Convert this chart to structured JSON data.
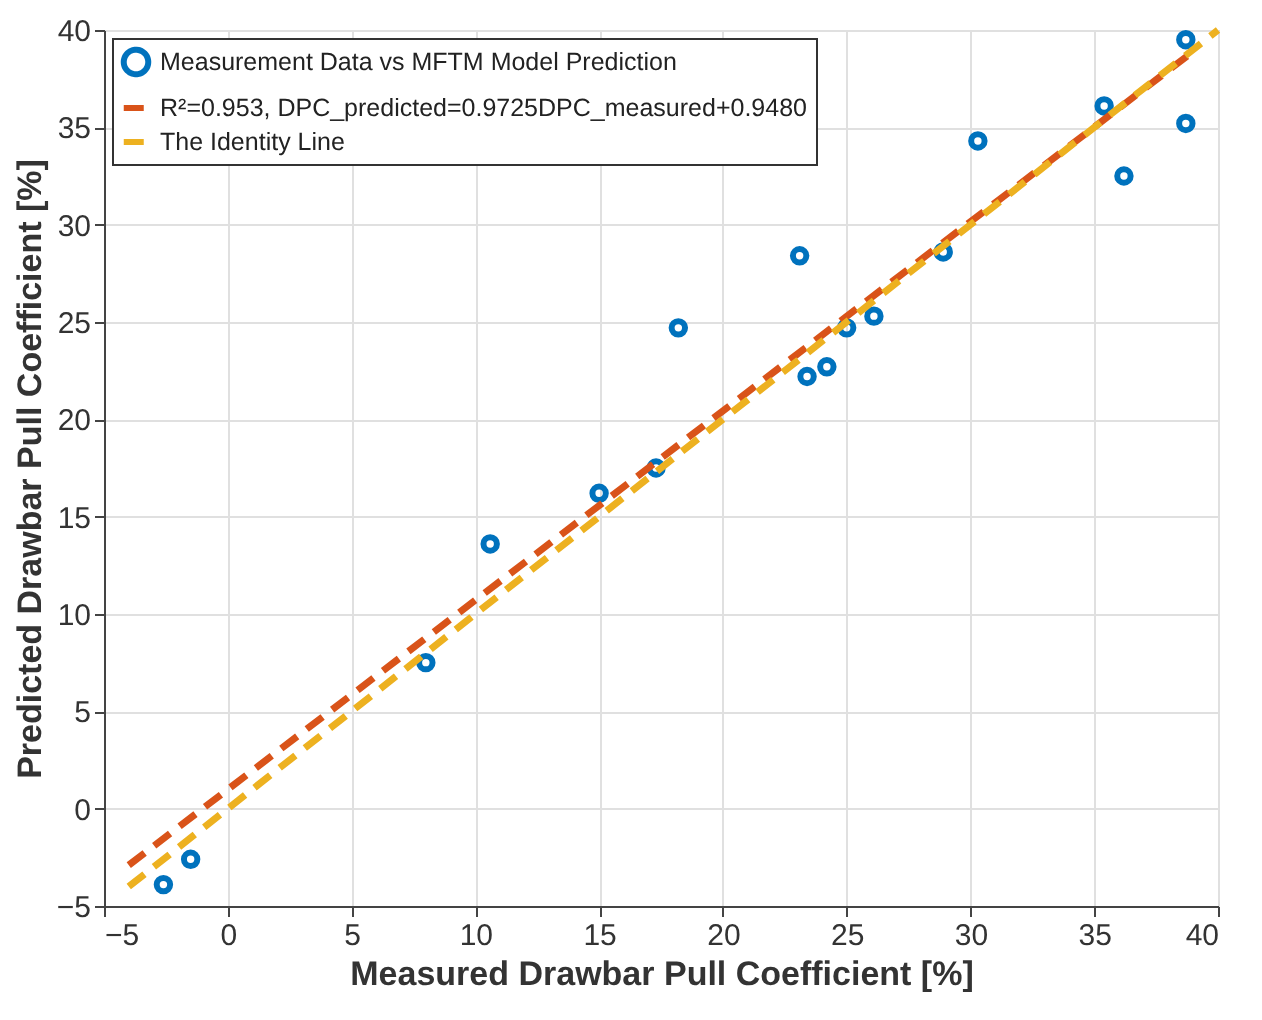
{
  "chart_data": {
    "type": "scatter",
    "xlabel": "Measured Drawbar Pull Coefficient [%]",
    "ylabel": "Predicted Drawbar Pull Coefficient [%]",
    "xlim": [
      -5,
      40
    ],
    "ylim": [
      -5,
      40
    ],
    "xticks": [
      -5,
      0,
      5,
      10,
      15,
      20,
      25,
      30,
      35,
      40
    ],
    "yticks": [
      -5,
      0,
      5,
      10,
      15,
      20,
      25,
      30,
      35,
      40
    ],
    "grid": true,
    "legend": "top left",
    "series": [
      {
        "name": "Measurement Data vs MFTM Model Prediction",
        "marker": "circle",
        "color": "#0072bd",
        "x": [
          -2.6,
          -1.5,
          8.0,
          10.6,
          15.0,
          17.3,
          18.2,
          23.1,
          23.4,
          24.2,
          25.0,
          26.1,
          28.9,
          30.3,
          35.4,
          36.2,
          38.7,
          38.7
        ],
        "values": [
          -3.9,
          -2.6,
          7.5,
          13.6,
          16.2,
          17.5,
          24.7,
          28.4,
          22.2,
          22.7,
          24.7,
          25.3,
          28.6,
          34.3,
          36.1,
          32.5,
          39.5,
          35.2
        ]
      },
      {
        "name": "R²=0.953, DPC_predicted=0.9725DPC_measured+0.9480",
        "type": "line",
        "line_style": "dashed",
        "color": "#d95319",
        "x": [
          -4,
          39
        ],
        "values": [
          -2.9,
          38.9
        ]
      },
      {
        "name": "The Identity Line",
        "type": "line",
        "line_style": "dashed",
        "color": "#edb120",
        "x": [
          -4,
          40
        ],
        "values": [
          -4,
          40
        ]
      }
    ]
  }
}
